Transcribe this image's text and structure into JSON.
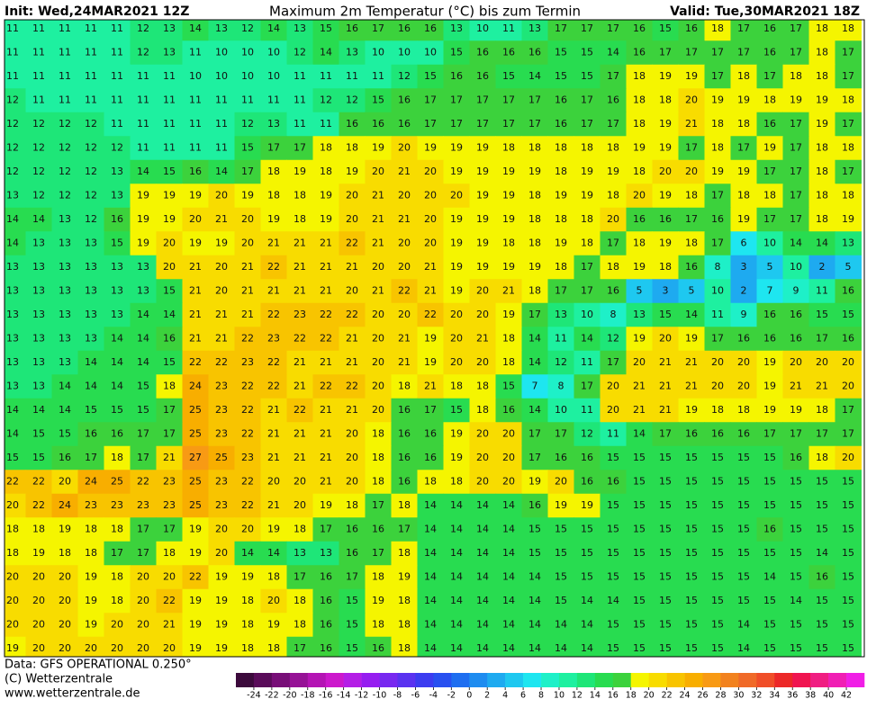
{
  "header": {
    "init": "Init: Wed,24MAR2021 12Z",
    "title": "Maximum 2m Temperatur (°C) bis zum Termin",
    "valid": "Valid: Tue,30MAR2021 18Z"
  },
  "map": {
    "rows": [
      [
        11,
        11,
        11,
        11,
        11,
        12,
        13,
        14,
        13,
        12,
        14,
        13,
        15,
        16,
        17,
        16,
        16,
        13,
        10,
        11,
        13,
        17,
        17,
        17,
        16,
        15,
        16,
        18,
        17,
        16,
        17,
        18,
        18
      ],
      [
        11,
        11,
        11,
        11,
        11,
        12,
        13,
        11,
        10,
        10,
        10,
        12,
        14,
        13,
        10,
        10,
        10,
        15,
        16,
        16,
        16,
        15,
        15,
        14,
        16,
        17,
        17,
        17,
        17,
        16,
        17,
        18,
        17
      ],
      [
        11,
        11,
        11,
        11,
        11,
        11,
        11,
        10,
        10,
        10,
        10,
        11,
        11,
        11,
        11,
        12,
        15,
        16,
        16,
        15,
        14,
        15,
        15,
        17,
        18,
        19,
        19,
        17,
        18,
        17,
        18,
        18,
        17
      ],
      [
        12,
        11,
        11,
        11,
        11,
        11,
        11,
        11,
        11,
        11,
        11,
        11,
        12,
        12,
        15,
        16,
        17,
        17,
        17,
        17,
        17,
        16,
        17,
        16,
        18,
        18,
        20,
        19,
        19,
        18,
        19,
        19,
        18
      ],
      [
        12,
        12,
        12,
        12,
        11,
        11,
        11,
        11,
        11,
        12,
        13,
        11,
        11,
        16,
        16,
        16,
        17,
        17,
        17,
        17,
        17,
        16,
        17,
        17,
        18,
        19,
        21,
        18,
        18,
        16,
        17,
        19,
        17
      ],
      [
        12,
        12,
        12,
        12,
        12,
        11,
        11,
        11,
        11,
        15,
        17,
        17,
        18,
        18,
        19,
        20,
        19,
        19,
        19,
        18,
        18,
        18,
        18,
        18,
        19,
        19,
        17,
        18,
        17,
        19,
        17,
        18,
        18
      ],
      [
        12,
        12,
        12,
        12,
        13,
        14,
        15,
        16,
        14,
        17,
        18,
        19,
        18,
        19,
        20,
        21,
        20,
        19,
        19,
        19,
        19,
        18,
        19,
        19,
        18,
        20,
        20,
        19,
        19,
        17,
        17,
        18,
        17
      ],
      [
        13,
        12,
        12,
        12,
        13,
        19,
        19,
        19,
        20,
        19,
        18,
        18,
        19,
        20,
        21,
        20,
        20,
        20,
        19,
        19,
        18,
        19,
        19,
        18,
        20,
        19,
        18,
        17,
        18,
        18,
        17,
        18,
        18
      ],
      [
        14,
        14,
        13,
        12,
        16,
        19,
        19,
        20,
        21,
        20,
        19,
        18,
        19,
        20,
        21,
        21,
        20,
        19,
        19,
        19,
        18,
        18,
        18,
        20,
        16,
        16,
        17,
        16,
        19,
        17,
        17,
        18,
        19
      ],
      [
        14,
        13,
        13,
        13,
        15,
        19,
        20,
        19,
        19,
        20,
        21,
        21,
        21,
        22,
        21,
        20,
        20,
        19,
        19,
        18,
        18,
        19,
        18,
        17,
        18,
        19,
        18,
        17,
        6,
        10,
        14,
        14,
        13
      ],
      [
        13,
        13,
        13,
        13,
        13,
        13,
        20,
        21,
        20,
        21,
        22,
        21,
        21,
        21,
        20,
        20,
        21,
        19,
        19,
        19,
        19,
        18,
        17,
        18,
        19,
        18,
        16,
        8,
        3,
        5,
        10,
        2,
        5
      ],
      [
        13,
        13,
        13,
        13,
        13,
        13,
        15,
        21,
        20,
        21,
        21,
        21,
        21,
        20,
        21,
        22,
        21,
        19,
        20,
        21,
        18,
        17,
        17,
        16,
        5,
        3,
        5,
        10,
        2,
        7,
        9,
        11,
        16
      ],
      [
        13,
        13,
        13,
        13,
        13,
        14,
        14,
        21,
        21,
        21,
        22,
        23,
        22,
        22,
        20,
        20,
        22,
        20,
        20,
        19,
        17,
        13,
        10,
        8,
        13,
        15,
        14,
        11,
        9,
        16,
        16,
        15,
        15
      ],
      [
        13,
        13,
        13,
        13,
        14,
        14,
        16,
        21,
        21,
        22,
        23,
        22,
        22,
        21,
        20,
        21,
        19,
        20,
        21,
        18,
        14,
        11,
        14,
        12,
        19,
        20,
        19,
        17,
        16,
        16,
        16,
        17,
        16
      ],
      [
        13,
        13,
        13,
        14,
        14,
        14,
        15,
        22,
        22,
        23,
        22,
        21,
        21,
        21,
        20,
        21,
        19,
        20,
        20,
        18,
        14,
        12,
        11,
        17,
        20,
        21,
        21,
        20,
        20,
        19,
        20,
        20,
        20
      ],
      [
        13,
        13,
        14,
        14,
        14,
        15,
        18,
        24,
        23,
        22,
        22,
        21,
        22,
        22,
        20,
        18,
        21,
        18,
        18,
        15,
        7,
        8,
        17,
        20,
        21,
        21,
        21,
        20,
        20,
        19,
        21,
        21,
        20
      ],
      [
        14,
        14,
        14,
        15,
        15,
        15,
        17,
        25,
        23,
        22,
        21,
        22,
        21,
        21,
        20,
        16,
        17,
        15,
        18,
        16,
        14,
        10,
        11,
        20,
        21,
        21,
        19,
        18,
        18,
        19,
        19,
        18,
        17
      ],
      [
        14,
        15,
        15,
        16,
        16,
        17,
        17,
        25,
        23,
        22,
        21,
        21,
        21,
        20,
        18,
        16,
        16,
        19,
        20,
        20,
        17,
        17,
        12,
        11,
        14,
        17,
        16,
        16,
        16,
        17,
        17,
        17,
        17
      ],
      [
        15,
        15,
        16,
        17,
        18,
        17,
        21,
        27,
        25,
        23,
        21,
        21,
        21,
        20,
        18,
        16,
        16,
        19,
        20,
        20,
        17,
        16,
        16,
        15,
        15,
        15,
        15,
        15,
        15,
        15,
        16,
        18,
        20
      ],
      [
        22,
        22,
        20,
        24,
        25,
        22,
        23,
        25,
        23,
        22,
        20,
        20,
        21,
        20,
        18,
        16,
        18,
        18,
        20,
        20,
        19,
        20,
        16,
        16,
        15,
        15,
        15,
        15,
        15,
        15,
        15,
        15,
        15
      ],
      [
        20,
        22,
        24,
        23,
        23,
        23,
        23,
        25,
        23,
        22,
        21,
        20,
        19,
        18,
        17,
        18,
        14,
        14,
        14,
        14,
        16,
        19,
        19,
        15,
        15,
        15,
        15,
        15,
        15,
        15,
        15,
        15,
        15
      ],
      [
        18,
        18,
        19,
        18,
        18,
        17,
        17,
        19,
        20,
        20,
        19,
        18,
        17,
        16,
        16,
        17,
        14,
        14,
        14,
        14,
        15,
        15,
        15,
        15,
        15,
        15,
        15,
        15,
        15,
        16,
        15,
        15,
        15
      ],
      [
        18,
        19,
        18,
        18,
        17,
        17,
        18,
        19,
        20,
        14,
        14,
        13,
        13,
        16,
        17,
        18,
        14,
        14,
        14,
        14,
        15,
        15,
        15,
        15,
        15,
        15,
        15,
        15,
        15,
        15,
        15,
        14,
        15
      ],
      [
        20,
        20,
        20,
        19,
        18,
        20,
        20,
        22,
        19,
        19,
        18,
        17,
        16,
        17,
        18,
        19,
        14,
        14,
        14,
        14,
        14,
        15,
        15,
        15,
        15,
        15,
        15,
        15,
        15,
        14,
        15,
        16,
        15
      ],
      [
        20,
        20,
        20,
        19,
        18,
        20,
        22,
        19,
        19,
        18,
        20,
        18,
        16,
        15,
        19,
        18,
        14,
        14,
        14,
        14,
        14,
        15,
        14,
        14,
        15,
        15,
        15,
        15,
        15,
        15,
        14,
        15,
        15
      ],
      [
        20,
        20,
        20,
        19,
        20,
        20,
        21,
        19,
        19,
        18,
        19,
        18,
        16,
        15,
        18,
        18,
        14,
        14,
        14,
        14,
        14,
        14,
        14,
        15,
        15,
        15,
        15,
        15,
        14,
        15,
        15,
        15,
        15
      ],
      [
        19,
        20,
        20,
        20,
        20,
        20,
        20,
        19,
        19,
        18,
        18,
        17,
        16,
        15,
        16,
        18,
        14,
        14,
        14,
        14,
        14,
        14,
        14,
        15,
        15,
        15,
        15,
        15,
        14,
        15,
        15,
        15,
        15
      ]
    ]
  },
  "legend": {
    "colors": [
      "#3c0a3c",
      "#5a0c5a",
      "#780e78",
      "#961296",
      "#b414b4",
      "#cc18cc",
      "#b41ee6",
      "#961ef0",
      "#7828f0",
      "#5a32f0",
      "#3c3cf0",
      "#2850f0",
      "#1e6ef0",
      "#1e8cf0",
      "#1eaaf0",
      "#1ec8f0",
      "#1ee6f0",
      "#1ef0c8",
      "#1ef0a0",
      "#1ee678",
      "#28dc50",
      "#3cd23c",
      "#f5f500",
      "#f8dc00",
      "#f8c400",
      "#f8ae00",
      "#f89a14",
      "#f2821e",
      "#f06a28",
      "#f04e28",
      "#ec2828",
      "#f01450",
      "#f01e82",
      "#f01eb4",
      "#f01ee6"
    ],
    "ticks": [
      -24,
      -22,
      -20,
      -18,
      -16,
      -14,
      -12,
      -10,
      -8,
      -6,
      -4,
      -2,
      0,
      2,
      4,
      6,
      8,
      10,
      12,
      14,
      16,
      18,
      20,
      22,
      24,
      26,
      28,
      30,
      32,
      34,
      36,
      38,
      40,
      42
    ]
  },
  "footer": {
    "data": "Data: GFS OPERATIONAL 0.250°",
    "copyright": "(C) Wetterzentrale",
    "url": "www.wetterzentrale.de"
  }
}
